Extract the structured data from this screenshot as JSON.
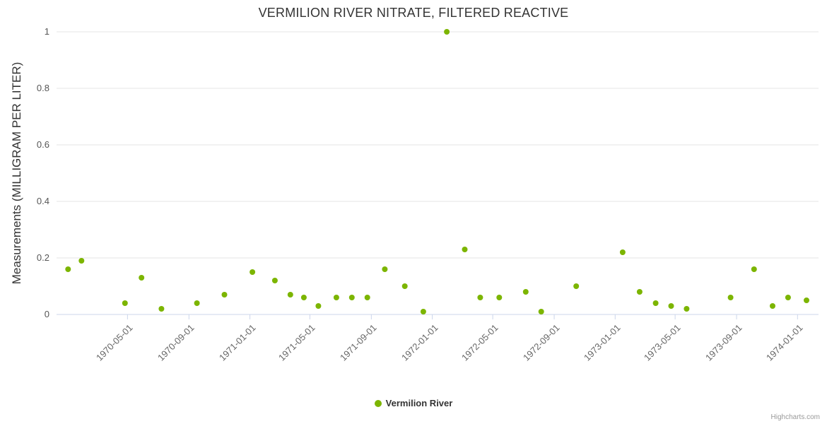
{
  "credits_label": "Highcharts.com",
  "chart_data": {
    "type": "scatter",
    "title": "VERMILION RIVER NITRATE, FILTERED REACTIVE",
    "xlabel": "",
    "ylabel": "Measurements (MILLIGRAM PER LITER)",
    "ylim": [
      0,
      1
    ],
    "yticks": [
      0,
      0.2,
      0.4,
      0.6,
      0.8,
      1
    ],
    "ytick_labels": [
      "0",
      "0.2",
      "0.4",
      "0.6",
      "0.8",
      "1"
    ],
    "xticks": [
      "1970-05-01",
      "1970-09-01",
      "1971-01-01",
      "1971-05-01",
      "1971-09-01",
      "1972-01-01",
      "1972-05-01",
      "1972-09-01",
      "1973-01-01",
      "1973-05-01",
      "1973-09-01",
      "1974-01-01"
    ],
    "x_domain": [
      "1969-12-10",
      "1974-02-12"
    ],
    "grid": true,
    "grid_color": "#e6e6e6",
    "axis_color": "#ccd6eb",
    "tick_label_color": "#666666",
    "y_label_color": "#555555",
    "legend_position": "bottom-center",
    "series": [
      {
        "name": "Vermilion River",
        "color": "#7cb500",
        "points": [
          {
            "date": "1970-01-02",
            "value": 0.16
          },
          {
            "date": "1970-01-29",
            "value": 0.19
          },
          {
            "date": "1970-04-26",
            "value": 0.04
          },
          {
            "date": "1970-05-29",
            "value": 0.13
          },
          {
            "date": "1970-07-08",
            "value": 0.02
          },
          {
            "date": "1970-09-17",
            "value": 0.04
          },
          {
            "date": "1970-11-11",
            "value": 0.07
          },
          {
            "date": "1971-01-06",
            "value": 0.15
          },
          {
            "date": "1971-02-20",
            "value": 0.12
          },
          {
            "date": "1971-03-23",
            "value": 0.07
          },
          {
            "date": "1971-04-19",
            "value": 0.06
          },
          {
            "date": "1971-05-18",
            "value": 0.03
          },
          {
            "date": "1971-06-23",
            "value": 0.06
          },
          {
            "date": "1971-07-24",
            "value": 0.06
          },
          {
            "date": "1971-08-24",
            "value": 0.06
          },
          {
            "date": "1971-09-28",
            "value": 0.16
          },
          {
            "date": "1971-11-07",
            "value": 0.1
          },
          {
            "date": "1971-12-14",
            "value": 0.01
          },
          {
            "date": "1972-01-30",
            "value": 1.0
          },
          {
            "date": "1972-03-06",
            "value": 0.23
          },
          {
            "date": "1972-04-06",
            "value": 0.06
          },
          {
            "date": "1972-05-14",
            "value": 0.06
          },
          {
            "date": "1972-07-06",
            "value": 0.08
          },
          {
            "date": "1972-08-06",
            "value": 0.01
          },
          {
            "date": "1972-10-15",
            "value": 0.1
          },
          {
            "date": "1973-01-16",
            "value": 0.22
          },
          {
            "date": "1973-02-19",
            "value": 0.08
          },
          {
            "date": "1973-03-23",
            "value": 0.04
          },
          {
            "date": "1973-04-23",
            "value": 0.03
          },
          {
            "date": "1973-05-24",
            "value": 0.02
          },
          {
            "date": "1973-08-20",
            "value": 0.06
          },
          {
            "date": "1973-10-06",
            "value": 0.16
          },
          {
            "date": "1973-11-12",
            "value": 0.03
          },
          {
            "date": "1973-12-13",
            "value": 0.06
          },
          {
            "date": "1974-01-19",
            "value": 0.05
          }
        ]
      }
    ]
  }
}
